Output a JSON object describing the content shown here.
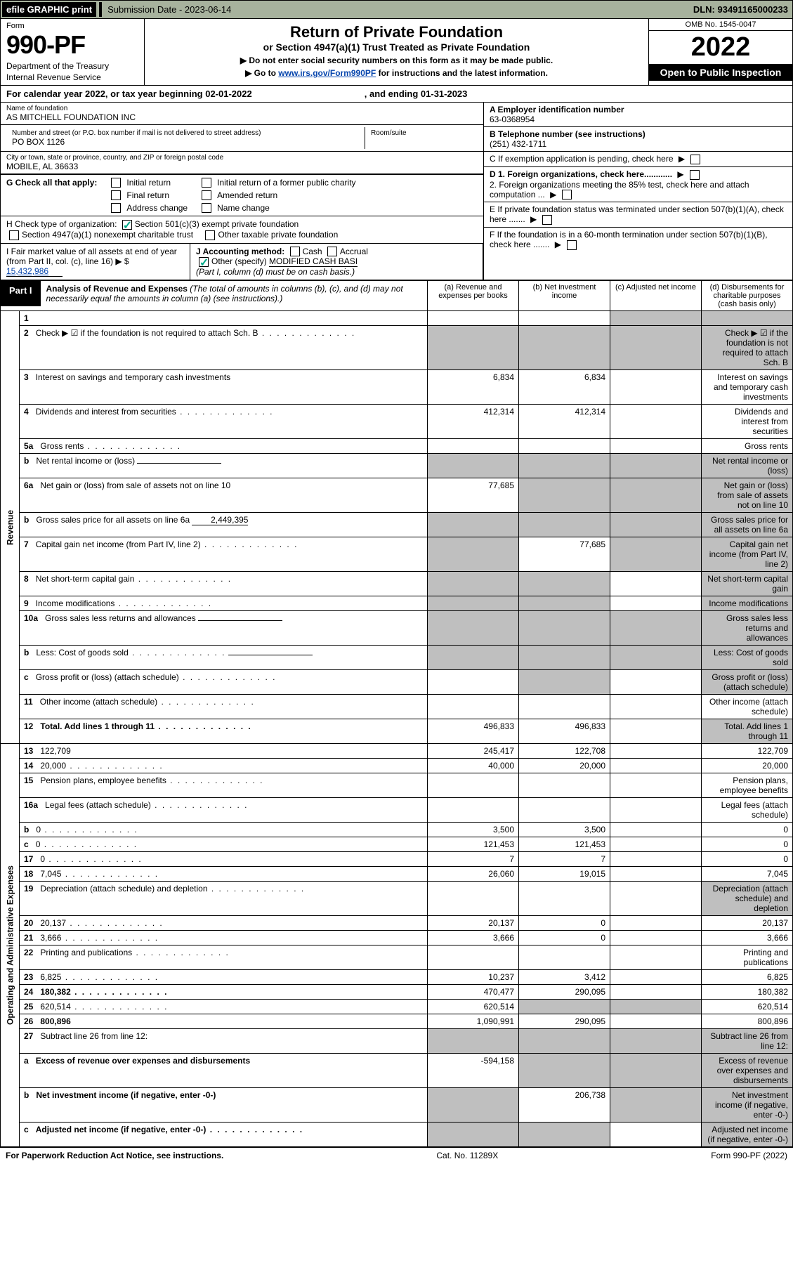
{
  "topbar": {
    "efile_label": "efile GRAPHIC print",
    "submission_label": "Submission Date - 2023-06-14",
    "dln": "DLN: 93491165000233"
  },
  "header": {
    "form_label": "Form",
    "form_number": "990-PF",
    "dept1": "Department of the Treasury",
    "dept2": "Internal Revenue Service",
    "title": "Return of Private Foundation",
    "subtitle": "or Section 4947(a)(1) Trust Treated as Private Foundation",
    "arrow1": "▶ Do not enter social security numbers on this form as it may be made public.",
    "arrow2_pre": "▶ Go to ",
    "arrow2_link": "www.irs.gov/Form990PF",
    "arrow2_post": " for instructions and the latest information.",
    "omb": "OMB No. 1545-0047",
    "year": "2022",
    "open": "Open to Public Inspection"
  },
  "calyear": {
    "text1": "For calendar year 2022, or tax year beginning 02-01-2022",
    "text2": ", and ending 01-31-2023"
  },
  "entity": {
    "name_lbl": "Name of foundation",
    "name_val": "AS MITCHELL FOUNDATION INC",
    "addr_lbl": "Number and street (or P.O. box number if mail is not delivered to street address)",
    "addr_val": "PO BOX 1126",
    "room_lbl": "Room/suite",
    "city_lbl": "City or town, state or province, country, and ZIP or foreign postal code",
    "city_val": "MOBILE, AL  36633",
    "a_lbl": "A Employer identification number",
    "a_val": "63-0368954",
    "b_lbl": "B Telephone number (see instructions)",
    "b_val": "(251) 432-1711",
    "c_lbl": "C If exemption application is pending, check here",
    "d1": "D 1. Foreign organizations, check here............",
    "d2": "2. Foreign organizations meeting the 85% test, check here and attach computation ...",
    "e_lbl": "E  If private foundation status was terminated under section 507(b)(1)(A), check here .......",
    "f_lbl": "F  If the foundation is in a 60-month termination under section 507(b)(1)(B), check here ......."
  },
  "g": {
    "label": "G Check all that apply:",
    "opts": [
      "Initial return",
      "Final return",
      "Address change",
      "Initial return of a former public charity",
      "Amended return",
      "Name change"
    ]
  },
  "h": {
    "label": "H Check type of organization:",
    "opt1": "Section 501(c)(3) exempt private foundation",
    "opt2": "Section 4947(a)(1) nonexempt charitable trust",
    "opt3": "Other taxable private foundation"
  },
  "i": {
    "label": "I Fair market value of all assets at end of year (from Part II, col. (c), line 16) ▶ $",
    "val": "15,432,986"
  },
  "j": {
    "label": "J Accounting method:",
    "cash": "Cash",
    "accrual": "Accrual",
    "other": "Other (specify)",
    "other_val": "MODIFIED CASH BASI",
    "note": "(Part I, column (d) must be on cash basis.)"
  },
  "part1": {
    "tab": "Part I",
    "title": "Analysis of Revenue and Expenses",
    "desc": " (The total of amounts in columns (b), (c), and (d) may not necessarily equal the amounts in column (a) (see instructions).)",
    "col_a": "(a) Revenue and expenses per books",
    "col_b": "(b) Net investment income",
    "col_c": "(c) Adjusted net income",
    "col_d": "(d) Disbursements for charitable purposes (cash basis only)"
  },
  "sections": {
    "revenue": "Revenue",
    "expenses": "Operating and Administrative Expenses"
  },
  "rows": [
    {
      "n": "1",
      "d": "",
      "a": "",
      "b": "",
      "c": "",
      "grey_cd": true
    },
    {
      "n": "2",
      "d": "Check ▶ ☑ if the foundation is not required to attach Sch. B",
      "dots": true,
      "grey_all": true
    },
    {
      "n": "3",
      "d": "Interest on savings and temporary cash investments",
      "a": "6,834",
      "b": "6,834"
    },
    {
      "n": "4",
      "d": "Dividends and interest from securities",
      "dots": true,
      "a": "412,314",
      "b": "412,314"
    },
    {
      "n": "5a",
      "d": "Gross rents",
      "dots": true
    },
    {
      "n": "b",
      "d": "Net rental income or (loss)",
      "inline": true,
      "grey_all": true
    },
    {
      "n": "6a",
      "d": "Net gain or (loss) from sale of assets not on line 10",
      "a": "77,685",
      "grey_bcd": true
    },
    {
      "n": "b",
      "d": "Gross sales price for all assets on line 6a",
      "inline_val": "2,449,395",
      "grey_all": true
    },
    {
      "n": "7",
      "d": "Capital gain net income (from Part IV, line 2)",
      "dots": true,
      "b": "77,685",
      "grey_a": true,
      "grey_cd": true
    },
    {
      "n": "8",
      "d": "Net short-term capital gain",
      "dots": true,
      "grey_ab": true,
      "grey_d": true
    },
    {
      "n": "9",
      "d": "Income modifications",
      "dots": true,
      "grey_ab": true,
      "grey_d": true
    },
    {
      "n": "10a",
      "d": "Gross sales less returns and allowances",
      "inline": true,
      "grey_all": true
    },
    {
      "n": "b",
      "d": "Less: Cost of goods sold",
      "dots": true,
      "inline": true,
      "grey_all": true
    },
    {
      "n": "c",
      "d": "Gross profit or (loss) (attach schedule)",
      "dots": true,
      "grey_bd": true
    },
    {
      "n": "11",
      "d": "Other income (attach schedule)",
      "dots": true
    },
    {
      "n": "12",
      "d": "Total. Add lines 1 through 11",
      "dots": true,
      "bold": true,
      "a": "496,833",
      "b": "496,833",
      "grey_d": true
    },
    {
      "n": "13",
      "d": "122,709",
      "a": "245,417",
      "b": "122,708"
    },
    {
      "n": "14",
      "d": "20,000",
      "dots": true,
      "a": "40,000",
      "b": "20,000"
    },
    {
      "n": "15",
      "d": "Pension plans, employee benefits",
      "dots": true
    },
    {
      "n": "16a",
      "d": "Legal fees (attach schedule)",
      "dots": true
    },
    {
      "n": "b",
      "d": "0",
      "dots": true,
      "a": "3,500",
      "b": "3,500"
    },
    {
      "n": "c",
      "d": "0",
      "dots": true,
      "a": "121,453",
      "b": "121,453"
    },
    {
      "n": "17",
      "d": "0",
      "dots": true,
      "a": "7",
      "b": "7"
    },
    {
      "n": "18",
      "d": "7,045",
      "dots": true,
      "a": "26,060",
      "b": "19,015"
    },
    {
      "n": "19",
      "d": "Depreciation (attach schedule) and depletion",
      "dots": true,
      "grey_d": true
    },
    {
      "n": "20",
      "d": "20,137",
      "dots": true,
      "a": "20,137",
      "b": "0"
    },
    {
      "n": "21",
      "d": "3,666",
      "dots": true,
      "a": "3,666",
      "b": "0"
    },
    {
      "n": "22",
      "d": "Printing and publications",
      "dots": true
    },
    {
      "n": "23",
      "d": "6,825",
      "dots": true,
      "a": "10,237",
      "b": "3,412"
    },
    {
      "n": "24",
      "d": "180,382",
      "dots": true,
      "bold": true,
      "a": "470,477",
      "b": "290,095"
    },
    {
      "n": "25",
      "d": "620,514",
      "dots": true,
      "a": "620,514",
      "grey_bc": true
    },
    {
      "n": "26",
      "d": "800,896",
      "bold": true,
      "a": "1,090,991",
      "b": "290,095"
    },
    {
      "n": "27",
      "d": "Subtract line 26 from line 12:",
      "grey_all": true
    },
    {
      "n": "a",
      "d": "Excess of revenue over expenses and disbursements",
      "bold": true,
      "a": "-594,158",
      "grey_bcd": true
    },
    {
      "n": "b",
      "d": "Net investment income (if negative, enter -0-)",
      "bold": true,
      "b": "206,738",
      "grey_a": true,
      "grey_cd": true
    },
    {
      "n": "c",
      "d": "Adjusted net income (if negative, enter -0-)",
      "dots": true,
      "bold": true,
      "grey_ab": true,
      "grey_d": true
    }
  ],
  "foot": {
    "left": "For Paperwork Reduction Act Notice, see instructions.",
    "mid": "Cat. No. 11289X",
    "right": "Form 990-PF (2022)"
  }
}
